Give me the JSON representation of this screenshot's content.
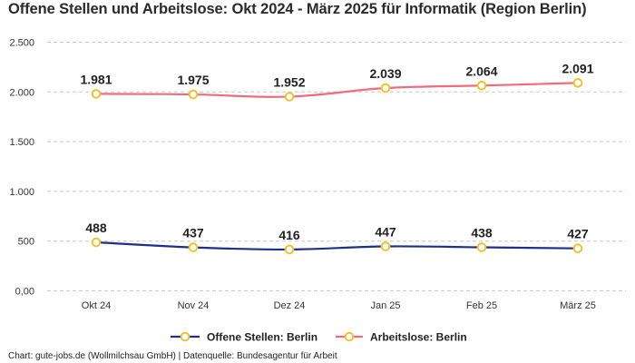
{
  "title": "Offene Stellen und Arbeitslose: Okt 2024 - März 2025 für Informatik (Region Berlin)",
  "footer": "Chart: gute-jobs.de (Wollmilchsau GmbH) | Datenquelle: Bundesagentur für Arbeit",
  "chart_data": {
    "type": "line",
    "title": "Offene Stellen und Arbeitslose: Okt 2024 - März 2025 für Informatik (Region Berlin)",
    "categories": [
      "Okt 24",
      "Nov 24",
      "Dez 24",
      "Jan 25",
      "Feb 25",
      "März 25"
    ],
    "ylim": [
      0,
      2500
    ],
    "yticks": [
      0,
      500,
      1000,
      1500,
      2000,
      2500
    ],
    "ytick_labels": [
      "0,00",
      "500",
      "1.000",
      "1.500",
      "2.000",
      "2.500"
    ],
    "grid": true,
    "legend_position": "bottom",
    "series": [
      {
        "name": "Offene Stellen: Berlin",
        "values": [
          488,
          437,
          416,
          447,
          438,
          427
        ],
        "labels": [
          "488",
          "437",
          "416",
          "447",
          "438",
          "427"
        ],
        "color": "#1f2f8a",
        "marker_color": "#f2c12e"
      },
      {
        "name": "Arbeitslose: Berlin",
        "values": [
          1981,
          1975,
          1952,
          2039,
          2064,
          2091
        ],
        "labels": [
          "1.981",
          "1.975",
          "1.952",
          "2.039",
          "2.064",
          "2.091"
        ],
        "color": "#f06b7d",
        "marker_color": "#f2c12e"
      }
    ]
  }
}
